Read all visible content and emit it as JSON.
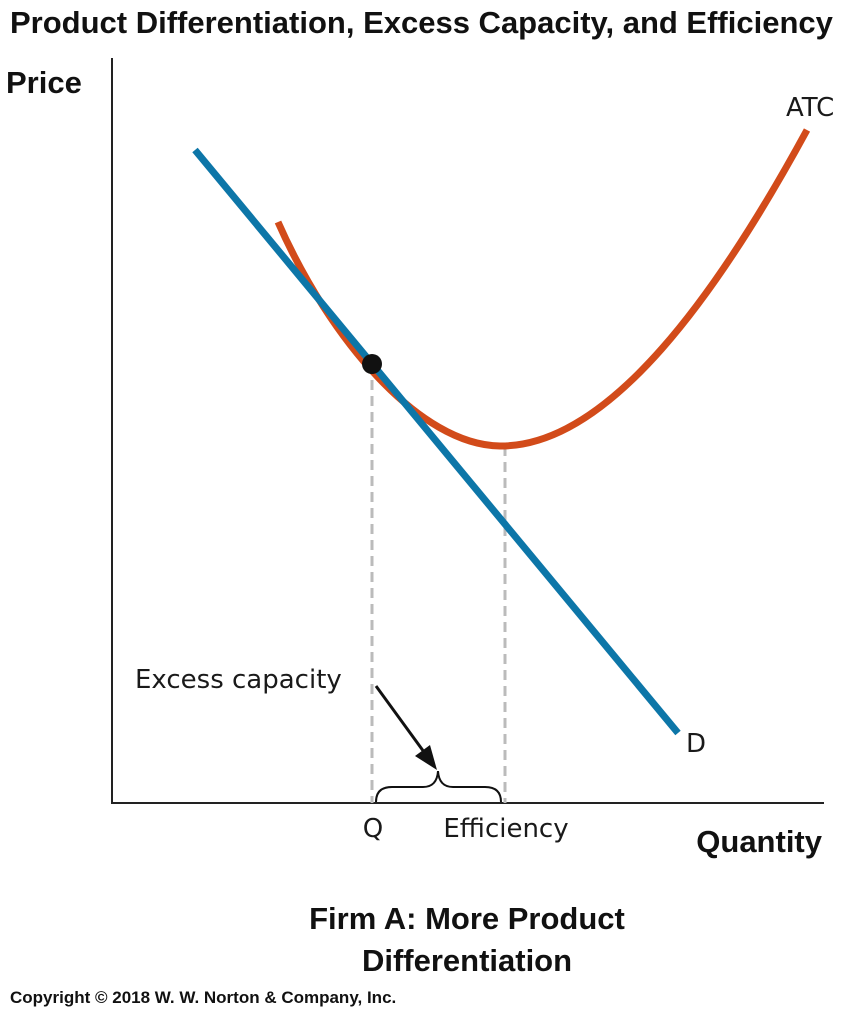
{
  "title": "Product Differentiation, Excess Capacity, and Efficiency",
  "axes": {
    "y_label": "Price",
    "x_label": "Quantity"
  },
  "curves": {
    "atc": {
      "label": "ATC",
      "color": "#d24b1a"
    },
    "demand": {
      "label": "D",
      "color": "#0d76a8"
    }
  },
  "markers": {
    "q_label": "Q",
    "efficiency_label": "Efficiency"
  },
  "annotation": {
    "excess_capacity": "Excess capacity"
  },
  "caption": {
    "line1": "Firm A: More Product",
    "line2": "Differentiation"
  },
  "copyright": "Copyright © 2018 W. W. Norton & Company, Inc.",
  "colors": {
    "axis": "#222222",
    "guide": "#bbbbbb",
    "point": "#111111"
  }
}
